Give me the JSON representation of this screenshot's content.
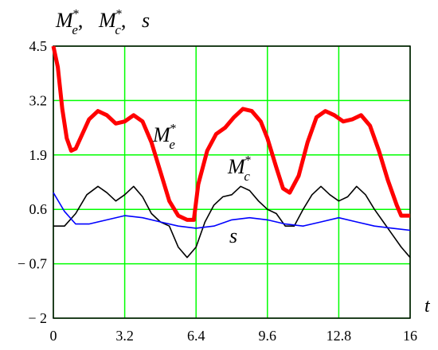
{
  "chart_data": {
    "type": "line",
    "title": "",
    "ylabel": "M_e*, M_c*, s",
    "xlabel": "t",
    "xlim": [
      0,
      16
    ],
    "ylim": [
      -2,
      4.5
    ],
    "x_ticks": [
      0,
      3.2,
      6.4,
      9.6,
      12.8,
      16
    ],
    "x_tick_labels": [
      "0",
      "3.2",
      "6.4",
      "9.6",
      "12.8",
      "16"
    ],
    "y_ticks": [
      -2,
      -0.7,
      0.6,
      1.9,
      3.2,
      4.5
    ],
    "y_tick_labels": [
      "− 2",
      "− 0.7",
      "0.6",
      "1.9",
      "3.2",
      "4.5"
    ],
    "grid": true,
    "grid_color": "#00ff00",
    "y_label_parts": [
      {
        "base": "M",
        "sub": "e",
        "sup": "*",
        "sep": ","
      },
      {
        "base": "M",
        "sub": "c",
        "sup": "*",
        "sep": ","
      },
      {
        "base": "s",
        "sub": "",
        "sup": "",
        "sep": ""
      }
    ],
    "series": [
      {
        "color": "#ff0000",
        "inline_label": {
          "base": "M",
          "sub": "e",
          "sup": "*"
        },
        "points": [
          [
            0,
            4.5
          ],
          [
            0.2,
            4.0
          ],
          [
            0.4,
            3.0
          ],
          [
            0.6,
            2.3
          ],
          [
            0.8,
            2.0
          ],
          [
            1.0,
            2.05
          ],
          [
            1.3,
            2.4
          ],
          [
            1.6,
            2.75
          ],
          [
            2.0,
            2.95
          ],
          [
            2.4,
            2.85
          ],
          [
            2.8,
            2.65
          ],
          [
            3.2,
            2.7
          ],
          [
            3.6,
            2.85
          ],
          [
            4.0,
            2.7
          ],
          [
            4.4,
            2.2
          ],
          [
            4.8,
            1.5
          ],
          [
            5.2,
            0.8
          ],
          [
            5.6,
            0.45
          ],
          [
            6.0,
            0.35
          ],
          [
            6.3,
            0.35
          ],
          [
            6.5,
            1.2
          ],
          [
            6.9,
            2.0
          ],
          [
            7.3,
            2.4
          ],
          [
            7.7,
            2.55
          ],
          [
            8.1,
            2.8
          ],
          [
            8.5,
            3.0
          ],
          [
            8.9,
            2.95
          ],
          [
            9.3,
            2.7
          ],
          [
            9.6,
            2.3
          ],
          [
            10.0,
            1.6
          ],
          [
            10.3,
            1.1
          ],
          [
            10.6,
            1.0
          ],
          [
            11.0,
            1.4
          ],
          [
            11.4,
            2.2
          ],
          [
            11.8,
            2.8
          ],
          [
            12.2,
            2.95
          ],
          [
            12.6,
            2.85
          ],
          [
            13.0,
            2.7
          ],
          [
            13.4,
            2.75
          ],
          [
            13.8,
            2.85
          ],
          [
            14.2,
            2.6
          ],
          [
            14.6,
            2.0
          ],
          [
            15.0,
            1.3
          ],
          [
            15.4,
            0.7
          ],
          [
            15.6,
            0.45
          ],
          [
            16.0,
            0.45
          ]
        ]
      },
      {
        "color": "#000000",
        "inline_label": {
          "base": "M",
          "sub": "c",
          "sup": "*"
        },
        "points": [
          [
            0,
            0.2
          ],
          [
            0.5,
            0.2
          ],
          [
            1.0,
            0.5
          ],
          [
            1.5,
            0.95
          ],
          [
            2.0,
            1.15
          ],
          [
            2.4,
            1.0
          ],
          [
            2.8,
            0.8
          ],
          [
            3.2,
            0.95
          ],
          [
            3.6,
            1.15
          ],
          [
            4.0,
            0.9
          ],
          [
            4.4,
            0.5
          ],
          [
            4.8,
            0.3
          ],
          [
            5.2,
            0.2
          ],
          [
            5.6,
            -0.3
          ],
          [
            6.0,
            -0.55
          ],
          [
            6.4,
            -0.3
          ],
          [
            6.8,
            0.3
          ],
          [
            7.2,
            0.7
          ],
          [
            7.6,
            0.9
          ],
          [
            8.0,
            0.95
          ],
          [
            8.4,
            1.15
          ],
          [
            8.8,
            1.05
          ],
          [
            9.2,
            0.8
          ],
          [
            9.6,
            0.6
          ],
          [
            10.0,
            0.5
          ],
          [
            10.4,
            0.2
          ],
          [
            10.8,
            0.2
          ],
          [
            11.2,
            0.6
          ],
          [
            11.6,
            0.95
          ],
          [
            12.0,
            1.15
          ],
          [
            12.4,
            0.95
          ],
          [
            12.8,
            0.8
          ],
          [
            13.2,
            0.9
          ],
          [
            13.6,
            1.15
          ],
          [
            14.0,
            0.95
          ],
          [
            14.4,
            0.6
          ],
          [
            14.8,
            0.3
          ],
          [
            15.2,
            0.0
          ],
          [
            15.6,
            -0.3
          ],
          [
            16.0,
            -0.55
          ]
        ]
      },
      {
        "color": "#0000ff",
        "inline_label": {
          "base": "s",
          "sub": "",
          "sup": ""
        },
        "points": [
          [
            0,
            1.0
          ],
          [
            0.5,
            0.55
          ],
          [
            1.0,
            0.25
          ],
          [
            1.6,
            0.25
          ],
          [
            2.4,
            0.35
          ],
          [
            3.2,
            0.45
          ],
          [
            4.0,
            0.4
          ],
          [
            4.8,
            0.3
          ],
          [
            5.6,
            0.2
          ],
          [
            6.4,
            0.15
          ],
          [
            7.2,
            0.2
          ],
          [
            8.0,
            0.35
          ],
          [
            8.8,
            0.4
          ],
          [
            9.6,
            0.35
          ],
          [
            10.4,
            0.25
          ],
          [
            11.2,
            0.2
          ],
          [
            12.0,
            0.3
          ],
          [
            12.8,
            0.4
          ],
          [
            13.6,
            0.3
          ],
          [
            14.4,
            0.2
          ],
          [
            15.2,
            0.15
          ],
          [
            16.0,
            0.1
          ]
        ]
      }
    ]
  }
}
